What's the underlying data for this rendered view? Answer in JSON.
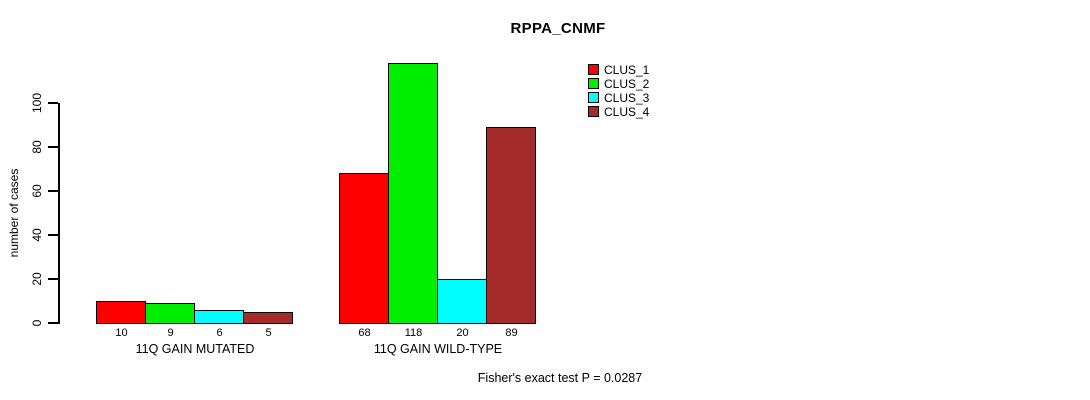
{
  "chart_data": {
    "type": "bar",
    "title": "RPPA_CNMF",
    "ylabel": "number of cases",
    "footer": "Fisher's exact test P = 0.0287",
    "categories": [
      "11Q GAIN MUTATED",
      "11Q GAIN WILD-TYPE"
    ],
    "series": [
      {
        "name": "CLUS_1",
        "color": "#FF0000",
        "values": [
          10,
          68
        ]
      },
      {
        "name": "CLUS_2",
        "color": "#00EE00",
        "values": [
          9,
          118
        ]
      },
      {
        "name": "CLUS_3",
        "color": "#00FFFF",
        "values": [
          6,
          20
        ]
      },
      {
        "name": "CLUS_4",
        "color": "#A52A2A",
        "values": [
          5,
          89
        ]
      }
    ],
    "yticks": [
      0,
      20,
      40,
      60,
      80,
      100
    ],
    "ylim": [
      0,
      124
    ],
    "grid": false,
    "bar_border_color": "#000000",
    "value_labels_shown": true,
    "legend_position": "top-right",
    "legend_entries": [
      "CLUS_1",
      "CLUS_2",
      "CLUS_3",
      "CLUS_4"
    ]
  }
}
